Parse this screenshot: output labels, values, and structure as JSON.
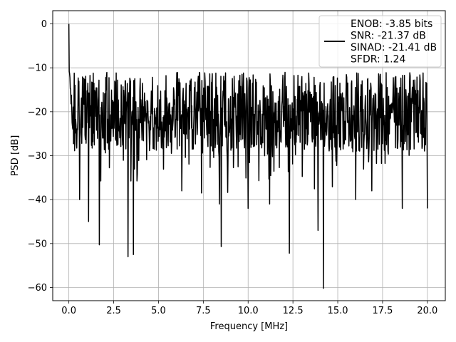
{
  "chart_data": {
    "type": "line",
    "title": "",
    "xlabel": "Frequency [MHz]",
    "ylabel": "PSD [dB]",
    "xlim": [
      -0.9,
      21.0
    ],
    "ylim": [
      -63,
      3
    ],
    "xticks": [
      0.0,
      2.5,
      5.0,
      7.5,
      10.0,
      12.5,
      15.0,
      17.5,
      20.0
    ],
    "xtick_labels": [
      "0.0",
      "2.5",
      "5.0",
      "7.5",
      "10.0",
      "12.5",
      "15.0",
      "17.5",
      "20.0"
    ],
    "yticks": [
      0,
      -10,
      -20,
      -30,
      -40,
      -50,
      -60
    ],
    "ytick_labels": [
      "0",
      "−10",
      "−20",
      "−30",
      "−40",
      "−50",
      "−60"
    ],
    "grid": true,
    "legend": {
      "placement": "top-right",
      "entries": [
        "ENOB: -3.85 bits",
        "SNR: -21.37 dB",
        "SINAD: -21.41 dB",
        "SFDR: 1.24"
      ]
    },
    "series": [
      {
        "color": "#000000",
        "x_start": 0.0,
        "x_end": 20.0,
        "points": 1000,
        "dc_peak": 0.0,
        "floor_mean": -20,
        "floor_max": -7,
        "deep_nulls": [
          {
            "x": 0.6,
            "y": -40
          },
          {
            "x": 1.1,
            "y": -45
          },
          {
            "x": 1.7,
            "y": -50.3
          },
          {
            "x": 3.3,
            "y": -53
          },
          {
            "x": 3.6,
            "y": -52.5
          },
          {
            "x": 6.3,
            "y": -38
          },
          {
            "x": 7.4,
            "y": -38.5
          },
          {
            "x": 8.4,
            "y": -41
          },
          {
            "x": 8.5,
            "y": -50.7
          },
          {
            "x": 10.0,
            "y": -42
          },
          {
            "x": 11.2,
            "y": -41
          },
          {
            "x": 12.3,
            "y": -52.2
          },
          {
            "x": 13.9,
            "y": -47
          },
          {
            "x": 14.2,
            "y": -60.2
          },
          {
            "x": 16.0,
            "y": -40
          },
          {
            "x": 16.9,
            "y": -38
          },
          {
            "x": 18.6,
            "y": -42
          },
          {
            "x": 20.0,
            "y": -42
          }
        ]
      }
    ]
  }
}
